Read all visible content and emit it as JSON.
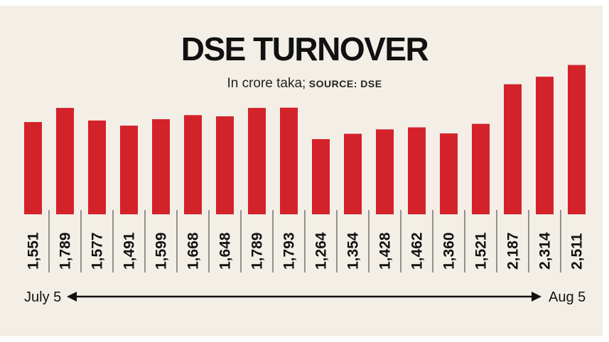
{
  "title": "DSE TURNOVER",
  "subtitle_unit": "In crore taka;",
  "subtitle_source": "SOURCE: DSE",
  "range_start": "July 5",
  "range_end": "Aug 5",
  "colors": {
    "bar": "#d4222a",
    "background": "#f3efe7",
    "text": "#111111"
  },
  "chart_data": {
    "type": "bar",
    "title": "DSE TURNOVER",
    "subtitle": "In crore taka; SOURCE: DSE",
    "values": [
      1551,
      1789,
      1577,
      1491,
      1599,
      1668,
      1648,
      1789,
      1793,
      1264,
      1354,
      1428,
      1462,
      1360,
      1521,
      2187,
      2314,
      2511
    ],
    "labels": [
      "1,551",
      "1,789",
      "1,577",
      "1,491",
      "1,599",
      "1,668",
      "1,648",
      "1,789",
      "1,793",
      "1,264",
      "1,354",
      "1,428",
      "1,462",
      "1,360",
      "1,521",
      "2,187",
      "2,314",
      "2,511"
    ],
    "grid": false,
    "legend": "none"
  }
}
